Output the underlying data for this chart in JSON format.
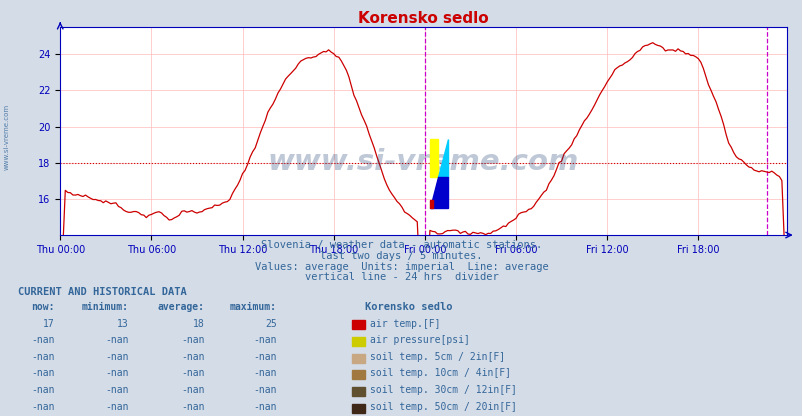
{
  "title": "Korensko sedlo",
  "title_color": "#cc0000",
  "bg_color": "#d4dce8",
  "plot_bg_color": "#ffffff",
  "grid_color_v": "#ffbbbb",
  "grid_color_h": "#ffbbbb",
  "axis_color": "#0000bb",
  "text_color": "#336699",
  "subtitle_lines": [
    "Slovenia / weather data - automatic stations.",
    "last two days / 5 minutes.",
    "Values: average  Units: imperial  Line: average",
    "vertical line - 24 hrs  divider"
  ],
  "xlabel_ticks": [
    "Thu 00:00",
    "Thu 06:00",
    "Thu 12:00",
    "Thu 18:00",
    "Fri 00:00",
    "Fri 06:00",
    "Fri 12:00",
    "Fri 18:00"
  ],
  "ylabel_ticks": [
    16,
    18,
    20,
    22,
    24
  ],
  "ylim": [
    14.0,
    25.5
  ],
  "xlim_min": 0,
  "xlim_max": 287,
  "avg_line_y": 18,
  "avg_line_color": "#cc0000",
  "vline_x": 144,
  "vline_color": "#cc00cc",
  "vline2_x": 279,
  "watermark": "www.si-vreme.com",
  "watermark_color": "#1a3a6e",
  "watermark_alpha": 0.28,
  "side_text": "www.si-vreme.com",
  "current_data_header": "CURRENT AND HISTORICAL DATA",
  "col_headers": [
    "now:",
    "minimum:",
    "average:",
    "maximum:",
    "Korensko sedlo"
  ],
  "rows": [
    {
      "values": [
        "17",
        "13",
        "18",
        "25"
      ],
      "color": "#cc0000",
      "label": "air temp.[F]"
    },
    {
      "values": [
        "-nan",
        "-nan",
        "-nan",
        "-nan"
      ],
      "color": "#cccc00",
      "label": "air pressure[psi]"
    },
    {
      "values": [
        "-nan",
        "-nan",
        "-nan",
        "-nan"
      ],
      "color": "#c8a882",
      "label": "soil temp. 5cm / 2in[F]"
    },
    {
      "values": [
        "-nan",
        "-nan",
        "-nan",
        "-nan"
      ],
      "color": "#a07840",
      "label": "soil temp. 10cm / 4in[F]"
    },
    {
      "values": [
        "-nan",
        "-nan",
        "-nan",
        "-nan"
      ],
      "color": "#605030",
      "label": "soil temp. 30cm / 12in[F]"
    },
    {
      "values": [
        "-nan",
        "-nan",
        "-nan",
        "-nan"
      ],
      "color": "#402818",
      "label": "soil temp. 50cm / 20in[F]"
    }
  ],
  "logo_yellow": "#ffff00",
  "logo_cyan": "#00ccff",
  "logo_blue": "#0000cc",
  "logo_red": "#cc0000",
  "line_color": "#cc0000",
  "line_width": 0.9
}
